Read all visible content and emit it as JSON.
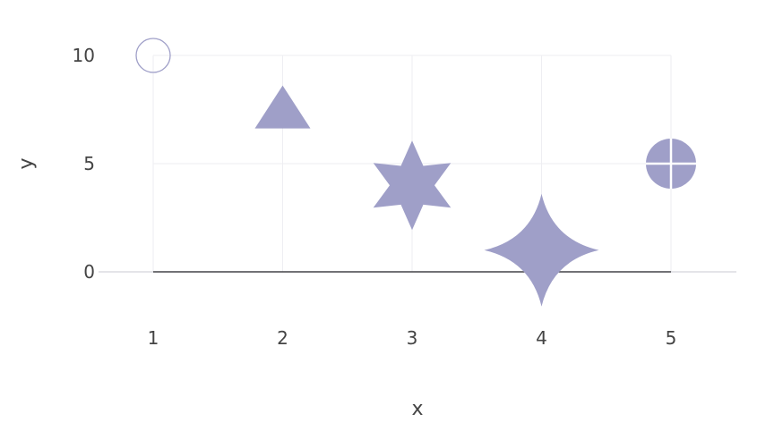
{
  "chart_data": {
    "type": "scatter",
    "title": "",
    "xlabel": "x",
    "ylabel": "y",
    "x_ticks": [
      "1",
      "2",
      "3",
      "4",
      "5"
    ],
    "y_ticks": [
      "0",
      "5",
      "10"
    ],
    "xlim": [
      0.0,
      5.5
    ],
    "ylim": [
      -2,
      10.5
    ],
    "grid": true,
    "marker_color": "#9f9fc8",
    "points": [
      {
        "x": 1,
        "y": 10,
        "marker": "circle-open"
      },
      {
        "x": 2,
        "y": 7,
        "marker": "triangle-up"
      },
      {
        "x": 3,
        "y": 4,
        "marker": "star-6"
      },
      {
        "x": 4,
        "y": 1,
        "marker": "star-4"
      },
      {
        "x": 5,
        "y": 5,
        "marker": "circle-cross"
      }
    ]
  }
}
